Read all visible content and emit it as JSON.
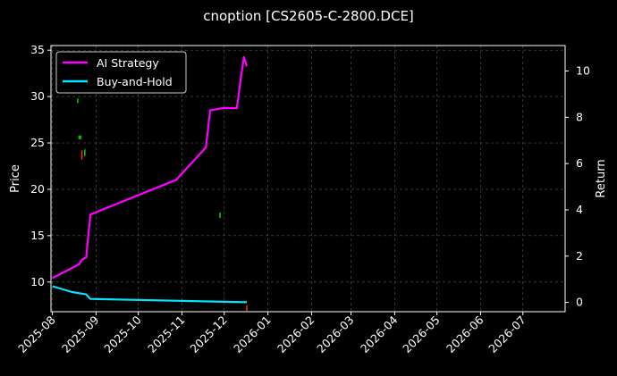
{
  "chart_data": {
    "type": "line",
    "title": "cnoption [CS2605-C-2800.DCE]",
    "xlabel": "",
    "ylabel_left": "Price",
    "ylabel_right": "Return",
    "x_ticks": [
      "2025-08",
      "2025-09",
      "2025-10",
      "2025-11",
      "2025-12",
      "2026-01",
      "2026-02",
      "2026-03",
      "2026-04",
      "2026-05",
      "2026-06",
      "2026-07"
    ],
    "x_range": [
      "2025-07-31",
      "2026-07-31"
    ],
    "ylim_left": [
      6.8,
      35.5
    ],
    "yticks_left": [
      10,
      15,
      20,
      25,
      30,
      35
    ],
    "ylim_right": [
      -0.4,
      11.1
    ],
    "yticks_right": [
      0,
      2,
      4,
      6,
      8,
      10
    ],
    "grid": true,
    "legend_position": "top-left",
    "series": [
      {
        "name": "AI Strategy",
        "color": "#ff00ff",
        "axis": "right",
        "points": [
          [
            "2025-08-01",
            1.05
          ],
          [
            "2025-08-20",
            1.65
          ],
          [
            "2025-08-22",
            1.85
          ],
          [
            "2025-08-25",
            1.95
          ],
          [
            "2025-08-28",
            3.8
          ],
          [
            "2025-10-28",
            5.3
          ],
          [
            "2025-11-18",
            6.7
          ],
          [
            "2025-11-21",
            8.3
          ],
          [
            "2025-11-30",
            8.4
          ],
          [
            "2025-12-10",
            8.4
          ],
          [
            "2025-12-13",
            9.8
          ],
          [
            "2025-12-15",
            10.6
          ],
          [
            "2025-12-17",
            10.2
          ]
        ]
      },
      {
        "name": "Buy-and-Hold",
        "color": "#00e5ff",
        "axis": "right",
        "points": [
          [
            "2025-08-01",
            0.7
          ],
          [
            "2025-08-15",
            0.45
          ],
          [
            "2025-08-22",
            0.38
          ],
          [
            "2025-08-25",
            0.35
          ],
          [
            "2025-08-28",
            0.15
          ],
          [
            "2025-09-15",
            0.13
          ],
          [
            "2025-12-01",
            0.03
          ],
          [
            "2025-12-17",
            0.01
          ]
        ]
      }
    ],
    "markers": [
      {
        "date": "2025-08-19",
        "low": 29.3,
        "high": 29.8,
        "color": "#00cc00"
      },
      {
        "date": "2025-08-20",
        "low": 25.4,
        "high": 25.8,
        "color": "#00cc00"
      },
      {
        "date": "2025-08-21",
        "low": 25.4,
        "high": 25.8,
        "color": "#00cc00"
      },
      {
        "date": "2025-08-22",
        "low": 23.2,
        "high": 24.2,
        "color": "#ff2020"
      },
      {
        "date": "2025-08-24",
        "low": 23.6,
        "high": 24.3,
        "color": "#00cc00"
      },
      {
        "date": "2025-11-28",
        "low": 16.9,
        "high": 17.5,
        "color": "#00cc00"
      },
      {
        "date": "2025-12-17",
        "low": 6.9,
        "high": 7.5,
        "color": "#ff2020"
      }
    ]
  }
}
